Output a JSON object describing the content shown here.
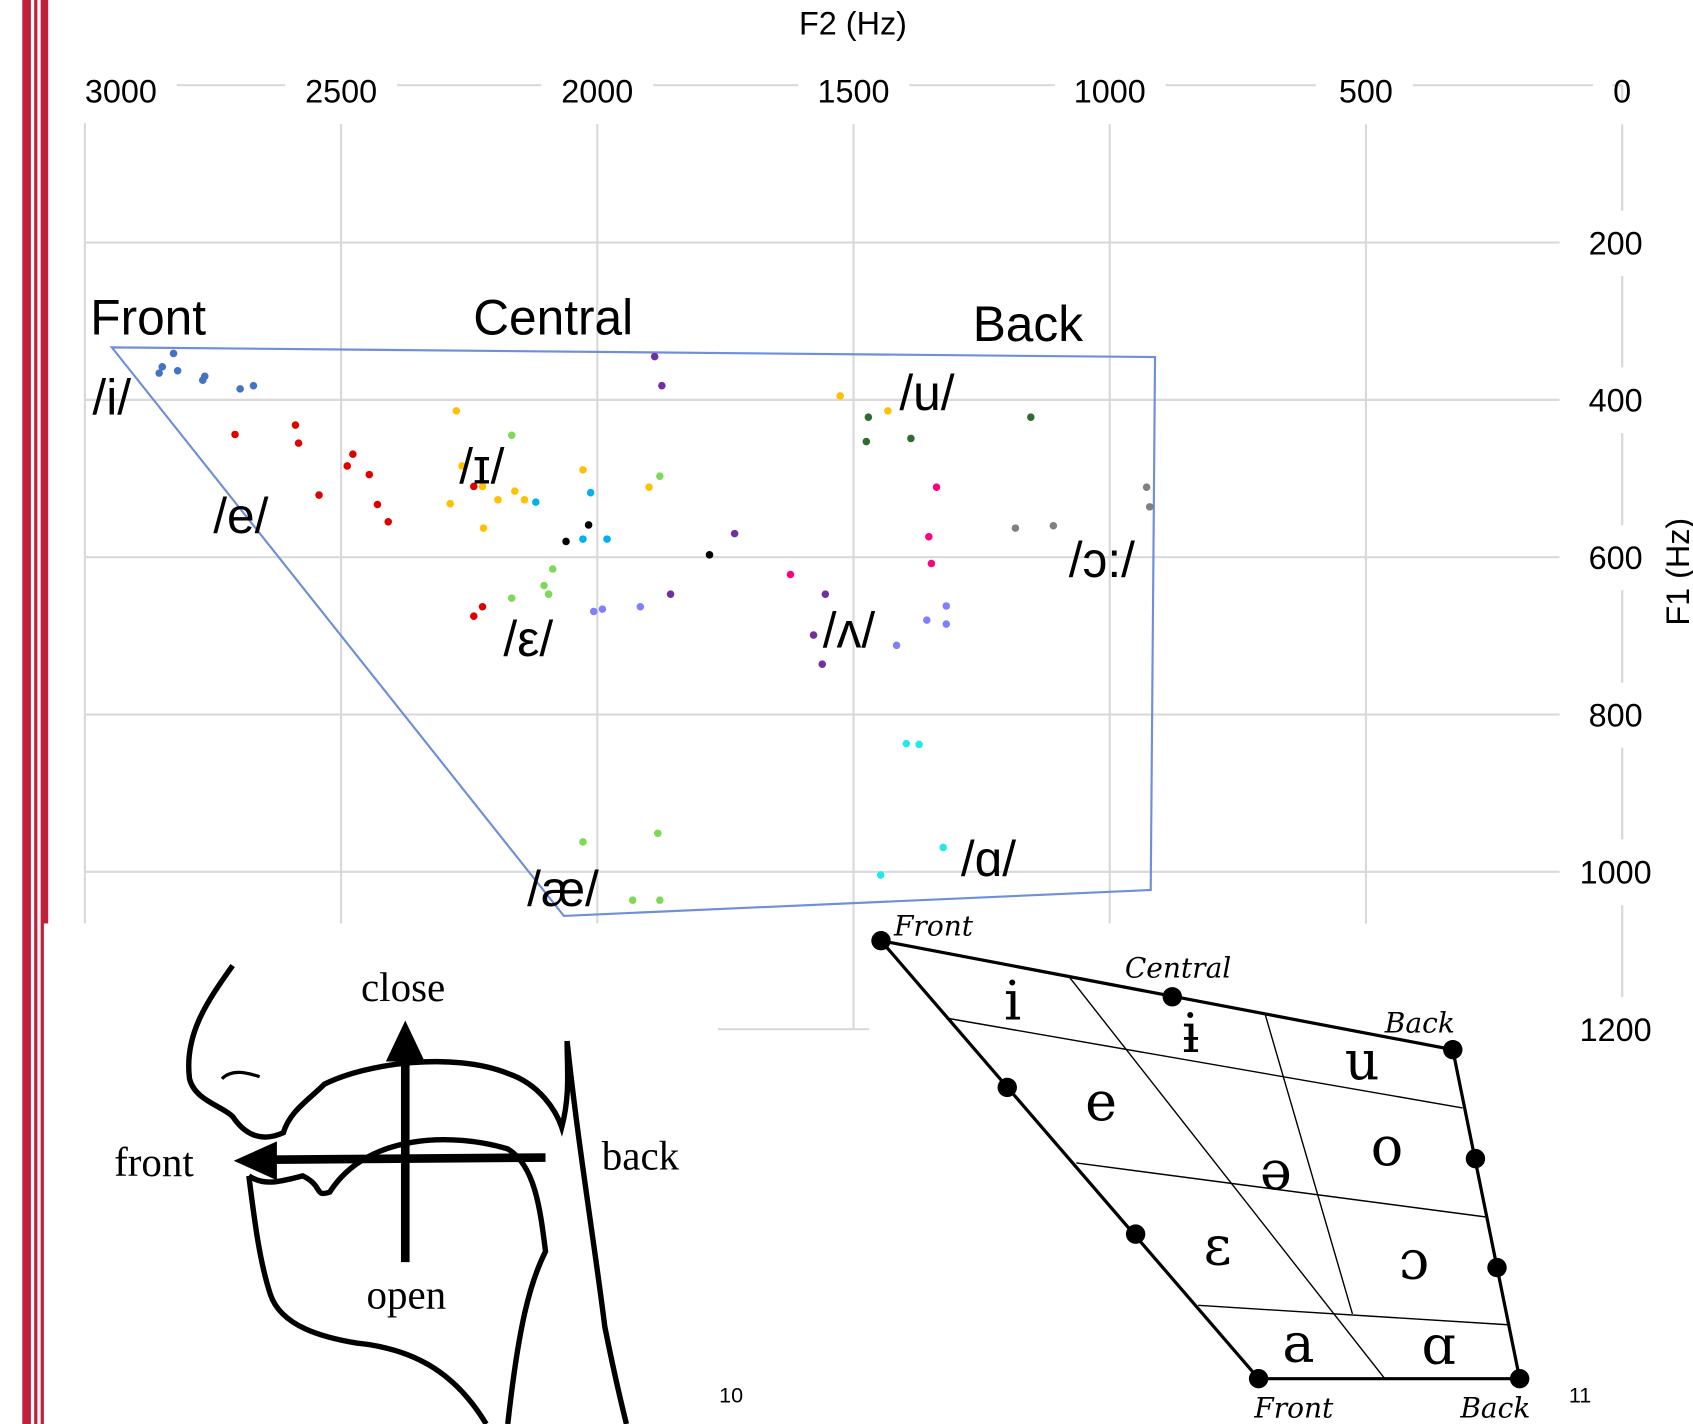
{
  "chart_data": {
    "type": "scatter",
    "x_label": "F2 (Hz)",
    "y_label": "F1 (Hz)",
    "xlim": [
      3000,
      0
    ],
    "ylim": [
      0,
      1200
    ],
    "y_reversed": true,
    "grid": true,
    "xticks": [
      3000,
      2500,
      2000,
      1500,
      1000,
      500,
      0
    ],
    "yticks": [
      200,
      400,
      600,
      800,
      1000,
      1200
    ],
    "series": [
      {
        "color": "#4472c4",
        "x": [
          2827,
          2849,
          2855,
          2819,
          2766,
          2770,
          2697,
          2671
        ],
        "values": [
          341,
          358,
          366,
          363,
          370,
          375,
          386,
          382
        ]
      },
      {
        "color": "#e00000",
        "x": [
          2707,
          2589,
          2583,
          2477,
          2488,
          2445,
          2543,
          2429,
          2408,
          2241,
          2241,
          2224
        ],
        "values": [
          444,
          432,
          455,
          469,
          484,
          495,
          521,
          533,
          555,
          510,
          675,
          663
        ]
      },
      {
        "color": "#ffc000",
        "x": [
          2275,
          2264,
          2224,
          2287,
          2222,
          2194,
          2161,
          2142,
          2028,
          1899,
          1526,
          1433
        ],
        "values": [
          414,
          484,
          510,
          532,
          563,
          527,
          516,
          527,
          489,
          511,
          395,
          414
        ]
      },
      {
        "color": "#7ed957",
        "x": [
          2167,
          1878,
          2087,
          2104,
          2095,
          2167,
          2028,
          1882,
          1931,
          1878
        ],
        "values": [
          445,
          497,
          615,
          636,
          647,
          652,
          962,
          951,
          1036,
          1036
        ]
      },
      {
        "color": "#00b0f0",
        "x": [
          2120,
          2013,
          2028,
          1981
        ],
        "values": [
          530,
          518,
          577,
          577
        ]
      },
      {
        "color": "#000000",
        "x": [
          2061,
          2017,
          1781
        ],
        "values": [
          580,
          559,
          597
        ]
      },
      {
        "color": "#7030a0",
        "x": [
          1888,
          1874,
          1732,
          1857,
          1555,
          1578,
          1561
        ],
        "values": [
          345,
          382,
          570,
          647,
          647,
          699,
          736
        ]
      },
      {
        "color": "#8080ff",
        "x": [
          2007,
          1990,
          1916,
          1416,
          1357,
          1319,
          1319
        ],
        "values": [
          669,
          666,
          663,
          712,
          680,
          662,
          685
        ]
      },
      {
        "color": "#ff0080",
        "x": [
          1623,
          1338,
          1353,
          1348
        ],
        "values": [
          622,
          511,
          574,
          608
        ]
      },
      {
        "color": "#2e6b2e",
        "x": [
          1471,
          1475,
          1388,
          1154
        ],
        "values": [
          422,
          453,
          449,
          422
        ]
      },
      {
        "color": "#808080",
        "x": [
          1184,
          1110,
          928,
          922
        ],
        "values": [
          563,
          560,
          511,
          536
        ]
      },
      {
        "color": "#1ee8f0",
        "x": [
          1397,
          1372,
          1325,
          1447
        ],
        "values": [
          837,
          838,
          969,
          1004
        ]
      }
    ],
    "annotations": [
      "Front",
      "Central",
      "Back",
      "/i/",
      "/e/",
      "/ɪ/",
      "/ε/",
      "/æ/",
      "/ʌ/",
      "/u/",
      "/ɔ:/",
      "/ɑ/"
    ]
  },
  "head_diagram": {
    "labels": [
      "close",
      "front",
      "back",
      "open"
    ]
  },
  "vowel_chart": {
    "top": [
      "Front",
      "Central",
      "Back"
    ],
    "vowels": [
      "i",
      "ɨ",
      "u",
      "e",
      "o",
      "ə",
      "ε",
      "ɔ",
      "a",
      "ɑ"
    ],
    "bottom": [
      "Front",
      "Back"
    ]
  },
  "page_numbers": [
    "10",
    "11"
  ]
}
